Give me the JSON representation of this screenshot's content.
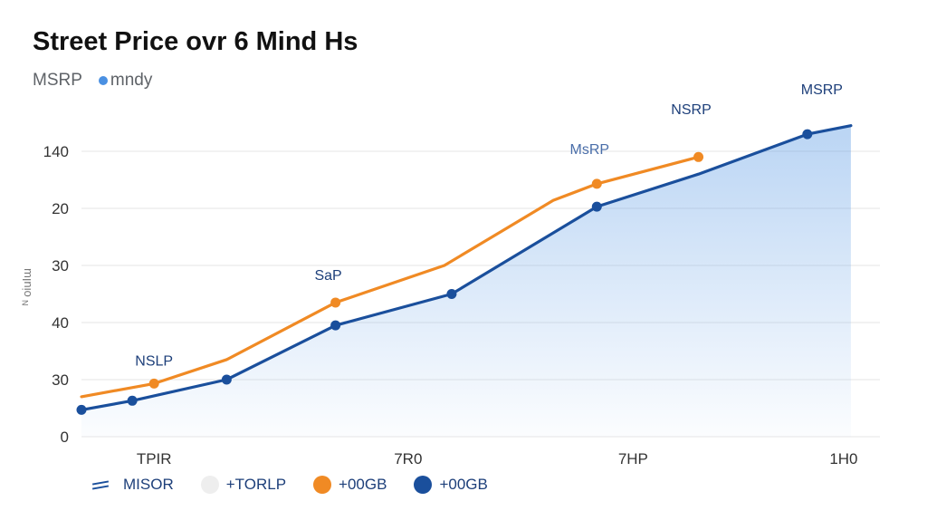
{
  "title": "Street Price ovr 6 Mind Hs",
  "subtitle": {
    "label": "MSRP",
    "series_label": "mndy",
    "dot_color": "#4a90e2"
  },
  "colors": {
    "orange": "#f08a24",
    "blue": "#1a4f9c",
    "area": "#4a90e2"
  },
  "legend": [
    {
      "label": "MISOR",
      "symbol": "line",
      "color": "#1a4f9c"
    },
    {
      "label": "+TORLP",
      "symbol": "dot",
      "color": "#eeeeee"
    },
    {
      "label": "+00GB",
      "symbol": "dot",
      "color": "#f08a24"
    },
    {
      "label": "+00GB",
      "symbol": "dot",
      "color": "#1a4f9c"
    }
  ],
  "chart_data": {
    "type": "line",
    "title": "Street Price ovr 6 Mind Hs",
    "xlabel": "",
    "ylabel": "ᴺ oiuIɯ",
    "x_ticks": [
      {
        "x": 1.0,
        "label": "TPIR"
      },
      {
        "x": 4.5,
        "label": "7R0"
      },
      {
        "x": 7.6,
        "label": "7HP"
      },
      {
        "x": 10.5,
        "label": "1H0"
      }
    ],
    "xlim": [
      0,
      11
    ],
    "y_ticks": [
      {
        "y": 0,
        "label": "0"
      },
      {
        "y": 1,
        "label": "30"
      },
      {
        "y": 2,
        "label": "40"
      },
      {
        "y": 3,
        "label": "30"
      },
      {
        "y": 4,
        "label": "20"
      },
      {
        "y": 5,
        "label": "140"
      }
    ],
    "ylim": [
      0,
      5
    ],
    "grid": true,
    "series": [
      {
        "name": "orange",
        "color": "#f08a24",
        "points": [
          {
            "x": 0,
            "y": 0.7,
            "marker": false
          },
          {
            "x": 1,
            "y": 0.93,
            "marker": true
          },
          {
            "x": 2,
            "y": 1.35,
            "marker": false
          },
          {
            "x": 3.5,
            "y": 2.35,
            "marker": true
          },
          {
            "x": 5,
            "y": 3.0,
            "marker": false
          },
          {
            "x": 6.5,
            "y": 4.14,
            "marker": false
          },
          {
            "x": 7.1,
            "y": 4.43,
            "marker": true
          },
          {
            "x": 8.5,
            "y": 4.9,
            "marker": true
          }
        ]
      },
      {
        "name": "blue",
        "color": "#1a4f9c",
        "area": true,
        "points": [
          {
            "x": 0,
            "y": 0.47,
            "marker": true
          },
          {
            "x": 0.7,
            "y": 0.63,
            "marker": true
          },
          {
            "x": 2,
            "y": 1.0,
            "marker": true
          },
          {
            "x": 3.5,
            "y": 1.95,
            "marker": true
          },
          {
            "x": 5.1,
            "y": 2.5,
            "marker": true
          },
          {
            "x": 7.1,
            "y": 4.03,
            "marker": true
          },
          {
            "x": 8.5,
            "y": 4.6,
            "marker": false
          },
          {
            "x": 10,
            "y": 5.3,
            "marker": true
          },
          {
            "x": 10.6,
            "y": 5.45,
            "marker": false
          }
        ]
      }
    ],
    "annotations": [
      {
        "text": "NSLP",
        "x": 1,
        "y": 1.25,
        "color": "#1d3f7a"
      },
      {
        "text": "SaP",
        "x": 3.4,
        "y": 2.75,
        "color": "#1d3f7a"
      },
      {
        "text": "MsRP",
        "x": 7.0,
        "y": 4.95,
        "color": "#4a6ea9"
      },
      {
        "text": "NSRP",
        "x": 8.4,
        "y": 5.65,
        "color": "#1d3f7a"
      },
      {
        "text": "MSRP",
        "x": 10.2,
        "y": 6.0,
        "color": "#1d3f7a"
      }
    ]
  }
}
